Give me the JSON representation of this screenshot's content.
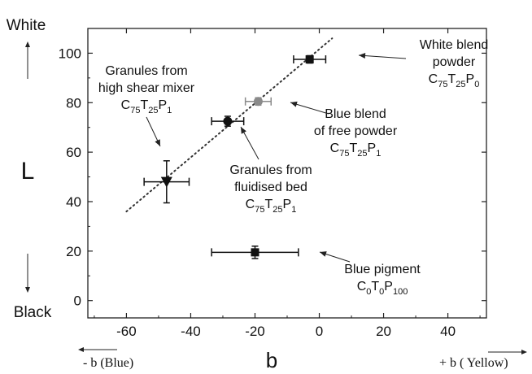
{
  "chart_data": {
    "type": "scatter",
    "xlabel": "b",
    "ylabel": "L",
    "xlim": [
      -72,
      52
    ],
    "ylim": [
      -7,
      110
    ],
    "xticks": [
      -60,
      -40,
      -20,
      0,
      20,
      40
    ],
    "yticks": [
      0,
      20,
      40,
      60,
      80,
      100
    ],
    "xtick_labels": [
      "-60",
      "-40",
      "-20",
      "0",
      "20",
      "40"
    ],
    "ytick_labels": [
      "0",
      "20",
      "40",
      "60",
      "80",
      "100"
    ],
    "y_top_label": "White",
    "y_bottom_label": "Black",
    "x_left_label": "- b (Blue)",
    "x_right_label": "+ b ( Yellow)",
    "grid": false,
    "trend_line": {
      "style": "dotted",
      "from": [
        -60,
        36
      ],
      "to": [
        4,
        106
      ]
    },
    "points": [
      {
        "x": -3,
        "y": 97.5,
        "xerr": 5,
        "yerr": 1.5,
        "marker": "square",
        "color": "#111111",
        "label": [
          "White blend",
          "powder"
        ],
        "formula": [
          "C",
          "75",
          "T",
          "25",
          "P",
          "0"
        ]
      },
      {
        "x": -19,
        "y": 80.5,
        "xerr": 4,
        "yerr": 1.5,
        "marker": "circle",
        "color": "#8a8a8a",
        "label": [
          "Blue blend",
          "of free powder"
        ],
        "formula": [
          "C",
          "75",
          "T",
          "25",
          "P",
          "1"
        ]
      },
      {
        "x": -28.5,
        "y": 72.5,
        "xerr": 5,
        "yerr": 2,
        "marker": "circle",
        "color": "#111111",
        "label": [
          "Granules from",
          "fluidised bed"
        ],
        "formula": [
          "C",
          "75",
          "T",
          "25",
          "P",
          "1"
        ]
      },
      {
        "x": -47.5,
        "y": 48,
        "xerr": 7,
        "yerr": 8.5,
        "marker": "triangle-down",
        "color": "#111111",
        "label": [
          "Granules from",
          "high shear mixer"
        ],
        "formula": [
          "C",
          "75",
          "T",
          "25",
          "P",
          "1"
        ]
      },
      {
        "x": -20,
        "y": 19.5,
        "xerr": 13.5,
        "yerr": 2.5,
        "marker": "square",
        "color": "#111111",
        "label": [
          "Blue pigment"
        ],
        "formula": [
          "C",
          "0",
          "T",
          "0",
          "P",
          "100"
        ]
      }
    ]
  }
}
